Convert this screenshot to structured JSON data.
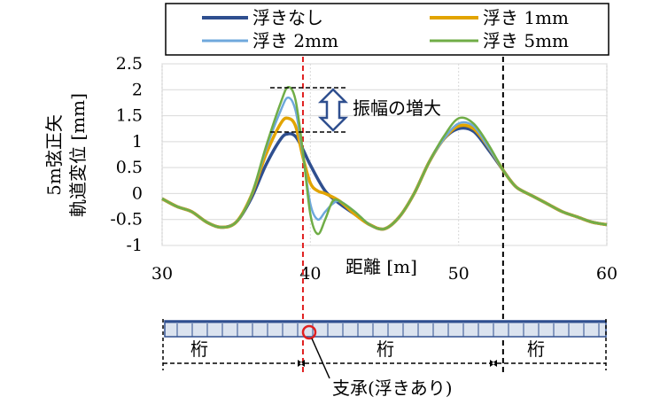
{
  "chart_data": {
    "type": "line",
    "xlabel": "距離 [m]",
    "ylabel_line1": "5m弦正矢",
    "ylabel_line2": "軌道変位 [mm]",
    "xlim": [
      30,
      60
    ],
    "ylim": [
      -1,
      2.5
    ],
    "x_ticks": [
      "30",
      "40",
      "50",
      "60"
    ],
    "y_ticks": [
      "2.5",
      "2",
      "1.5",
      "1",
      "0.5",
      "0",
      "-0.5",
      "-1"
    ],
    "grid": true,
    "legend_position": "top",
    "series": [
      {
        "name": "浮きなし",
        "color": "#2f4f8f",
        "x": [
          30,
          31,
          32,
          33,
          34,
          35,
          36,
          37,
          38,
          38.5,
          39,
          39.5,
          40,
          41,
          42,
          43,
          44,
          45,
          46,
          47,
          48,
          49,
          50,
          51,
          52,
          53,
          53.5,
          54,
          55,
          56,
          57,
          58,
          59,
          60
        ],
        "y": [
          -0.1,
          -0.25,
          -0.35,
          -0.55,
          -0.65,
          -0.55,
          -0.1,
          0.55,
          1.05,
          1.15,
          1.1,
          0.85,
          0.55,
          0.05,
          -0.2,
          -0.4,
          -0.6,
          -0.68,
          -0.45,
          0.0,
          0.6,
          1.05,
          1.25,
          1.2,
          0.85,
          0.45,
          0.25,
          0.1,
          -0.05,
          -0.2,
          -0.35,
          -0.45,
          -0.55,
          -0.6
        ]
      },
      {
        "name": "浮き 1mm",
        "color": "#e2a400",
        "x": [
          30,
          31,
          32,
          33,
          34,
          35,
          36,
          37,
          38,
          38.5,
          39,
          39.5,
          40,
          40.5,
          41,
          42,
          43,
          44,
          45,
          46,
          47,
          48,
          49,
          50,
          51,
          52,
          53,
          53.5,
          54,
          55,
          56,
          57,
          58,
          59,
          60
        ],
        "y": [
          -0.1,
          -0.25,
          -0.35,
          -0.55,
          -0.65,
          -0.55,
          -0.05,
          0.75,
          1.35,
          1.45,
          1.3,
          0.7,
          0.2,
          0.05,
          0.0,
          -0.15,
          -0.4,
          -0.6,
          -0.68,
          -0.45,
          0.0,
          0.6,
          1.05,
          1.3,
          1.25,
          0.9,
          0.45,
          0.25,
          0.1,
          -0.05,
          -0.2,
          -0.35,
          -0.45,
          -0.55,
          -0.6
        ]
      },
      {
        "name": "浮き 2mm",
        "color": "#6fa8dc",
        "x": [
          30,
          31,
          32,
          33,
          34,
          35,
          36,
          37,
          38,
          38.5,
          39,
          39.5,
          40,
          40.5,
          41,
          41.5,
          42,
          43,
          44,
          45,
          46,
          47,
          48,
          49,
          50,
          51,
          52,
          53,
          53.5,
          54,
          55,
          56,
          57,
          58,
          59,
          60
        ],
        "y": [
          -0.1,
          -0.25,
          -0.35,
          -0.55,
          -0.65,
          -0.55,
          -0.05,
          0.85,
          1.6,
          1.85,
          1.6,
          0.75,
          -0.2,
          -0.5,
          -0.35,
          -0.2,
          -0.15,
          -0.35,
          -0.6,
          -0.68,
          -0.45,
          0.0,
          0.6,
          1.05,
          1.35,
          1.3,
          0.9,
          0.45,
          0.25,
          0.1,
          -0.05,
          -0.2,
          -0.35,
          -0.45,
          -0.55,
          -0.6
        ]
      },
      {
        "name": "浮き 5mm",
        "color": "#70ad47",
        "x": [
          30,
          31,
          32,
          33,
          34,
          35,
          36,
          37,
          38,
          38.5,
          39,
          39.5,
          40,
          40.5,
          41,
          41.5,
          42,
          43,
          44,
          45,
          46,
          47,
          48,
          49,
          50,
          51,
          52,
          53,
          53.5,
          54,
          55,
          56,
          57,
          58,
          59,
          60
        ],
        "y": [
          -0.1,
          -0.25,
          -0.35,
          -0.55,
          -0.65,
          -0.55,
          -0.05,
          0.9,
          1.75,
          2.05,
          1.8,
          0.8,
          -0.4,
          -0.78,
          -0.5,
          -0.15,
          -0.15,
          -0.35,
          -0.6,
          -0.68,
          -0.45,
          0.0,
          0.6,
          1.1,
          1.45,
          1.35,
          0.95,
          0.45,
          0.25,
          0.1,
          -0.05,
          -0.2,
          -0.35,
          -0.45,
          -0.55,
          -0.6
        ]
      }
    ],
    "vlines": [
      {
        "x": 39.5,
        "color": "#e02020"
      },
      {
        "x": 53.0,
        "color": "#000000"
      }
    ],
    "annotation": "振幅の増大"
  },
  "bridge": {
    "girder_label": "桁",
    "bearing_label": "支承(浮きあり)"
  }
}
